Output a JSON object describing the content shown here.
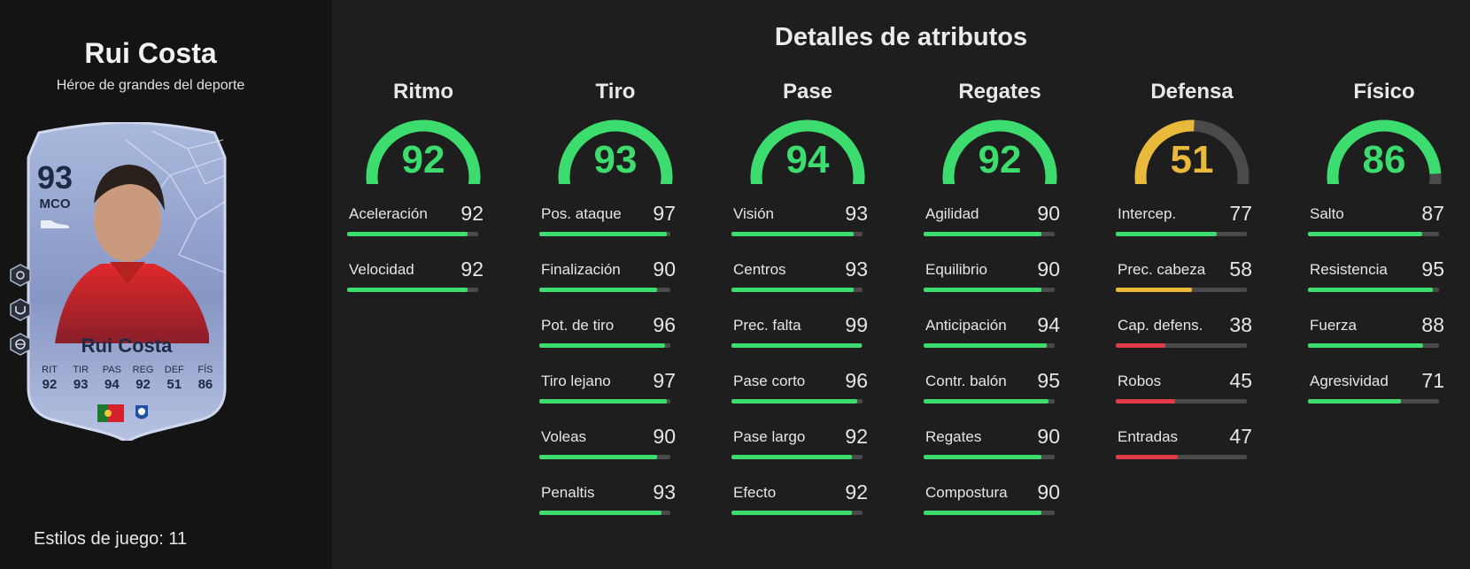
{
  "player": {
    "name": "Rui Costa",
    "subtitle": "Héroe de grandes del deporte",
    "styles_label": "Estilos de juego: 11"
  },
  "card": {
    "rating": "93",
    "position": "MCO",
    "name": "Rui Costa",
    "stats": [
      {
        "label": "RIT",
        "value": "92"
      },
      {
        "label": "TIR",
        "value": "93"
      },
      {
        "label": "PAS",
        "value": "94"
      },
      {
        "label": "REG",
        "value": "92"
      },
      {
        "label": "DEF",
        "value": "51"
      },
      {
        "label": "FÍS",
        "value": "86"
      }
    ]
  },
  "panel": {
    "title": "Detalles de atributos"
  },
  "colors": {
    "high": "#3ddc6e",
    "mid": "#e8b93a",
    "low": "#e23a48",
    "track": "#4a4a4a"
  },
  "groups": [
    {
      "name": "Ritmo",
      "value": 92,
      "stats": [
        {
          "label": "Aceleración",
          "value": 92
        },
        {
          "label": "Velocidad",
          "value": 92
        }
      ]
    },
    {
      "name": "Tiro",
      "value": 93,
      "stats": [
        {
          "label": "Pos. ataque",
          "value": 97
        },
        {
          "label": "Finalización",
          "value": 90
        },
        {
          "label": "Pot. de tiro",
          "value": 96
        },
        {
          "label": "Tiro lejano",
          "value": 97
        },
        {
          "label": "Voleas",
          "value": 90
        },
        {
          "label": "Penaltis",
          "value": 93
        }
      ]
    },
    {
      "name": "Pase",
      "value": 94,
      "stats": [
        {
          "label": "Visión",
          "value": 93
        },
        {
          "label": "Centros",
          "value": 93
        },
        {
          "label": "Prec. falta",
          "value": 99
        },
        {
          "label": "Pase corto",
          "value": 96
        },
        {
          "label": "Pase largo",
          "value": 92
        },
        {
          "label": "Efecto",
          "value": 92
        }
      ]
    },
    {
      "name": "Regates",
      "value": 92,
      "stats": [
        {
          "label": "Agilidad",
          "value": 90
        },
        {
          "label": "Equilibrio",
          "value": 90
        },
        {
          "label": "Anticipación",
          "value": 94
        },
        {
          "label": "Contr. balón",
          "value": 95
        },
        {
          "label": "Regates",
          "value": 90
        },
        {
          "label": "Compostura",
          "value": 90
        }
      ]
    },
    {
      "name": "Defensa",
      "value": 51,
      "stats": [
        {
          "label": "Intercep.",
          "value": 77
        },
        {
          "label": "Prec. cabeza",
          "value": 58
        },
        {
          "label": "Cap. defens.",
          "value": 38
        },
        {
          "label": "Robos",
          "value": 45
        },
        {
          "label": "Entradas",
          "value": 47
        }
      ]
    },
    {
      "name": "Físico",
      "value": 86,
      "stats": [
        {
          "label": "Salto",
          "value": 87
        },
        {
          "label": "Resistencia",
          "value": 95
        },
        {
          "label": "Fuerza",
          "value": 88
        },
        {
          "label": "Agresividad",
          "value": 71
        }
      ]
    }
  ]
}
